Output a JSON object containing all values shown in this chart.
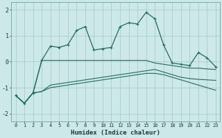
{
  "xlabel": "Humidex (Indice chaleur)",
  "background_color": "#cce8e8",
  "grid_color": "#aacccc",
  "line_color": "#1a6b5a",
  "xlim": [
    -0.5,
    23.5
  ],
  "ylim": [
    -2.3,
    2.3
  ],
  "x": [
    0,
    1,
    2,
    3,
    4,
    5,
    6,
    7,
    8,
    9,
    10,
    11,
    12,
    13,
    14,
    15,
    16,
    17,
    18,
    19,
    20,
    21,
    22,
    23
  ],
  "line_upper": [
    -1.3,
    -1.6,
    -1.2,
    0.05,
    0.6,
    0.55,
    0.65,
    1.2,
    1.35,
    0.45,
    0.5,
    0.55,
    1.35,
    1.5,
    1.45,
    1.9,
    1.65,
    0.65,
    -0.05,
    -0.1,
    -0.15,
    0.35,
    0.15,
    -0.2
  ],
  "line_mid_upper": [
    -1.3,
    -1.6,
    -1.2,
    0.05,
    0.05,
    0.05,
    0.05,
    0.05,
    0.05,
    0.05,
    0.05,
    0.05,
    0.05,
    0.05,
    0.05,
    0.05,
    -0.05,
    -0.1,
    -0.15,
    -0.2,
    -0.25,
    -0.25,
    -0.28,
    -0.3
  ],
  "line_mid_lower": [
    -1.3,
    -1.6,
    -1.2,
    -1.15,
    -0.9,
    -0.85,
    -0.8,
    -0.75,
    -0.7,
    -0.65,
    -0.6,
    -0.55,
    -0.5,
    -0.45,
    -0.4,
    -0.35,
    -0.3,
    -0.4,
    -0.5,
    -0.6,
    -0.65,
    -0.68,
    -0.7,
    -0.72
  ],
  "line_lower": [
    -1.3,
    -1.6,
    -1.2,
    -1.15,
    -1.0,
    -0.95,
    -0.9,
    -0.85,
    -0.8,
    -0.75,
    -0.7,
    -0.65,
    -0.6,
    -0.55,
    -0.5,
    -0.45,
    -0.45,
    -0.5,
    -0.6,
    -0.7,
    -0.8,
    -0.9,
    -1.0,
    -1.1
  ],
  "yticks": [
    -2,
    -1,
    0,
    1,
    2
  ],
  "xticks": [
    0,
    1,
    2,
    3,
    4,
    5,
    6,
    7,
    8,
    9,
    10,
    11,
    12,
    13,
    14,
    15,
    16,
    17,
    18,
    19,
    20,
    21,
    22,
    23
  ]
}
